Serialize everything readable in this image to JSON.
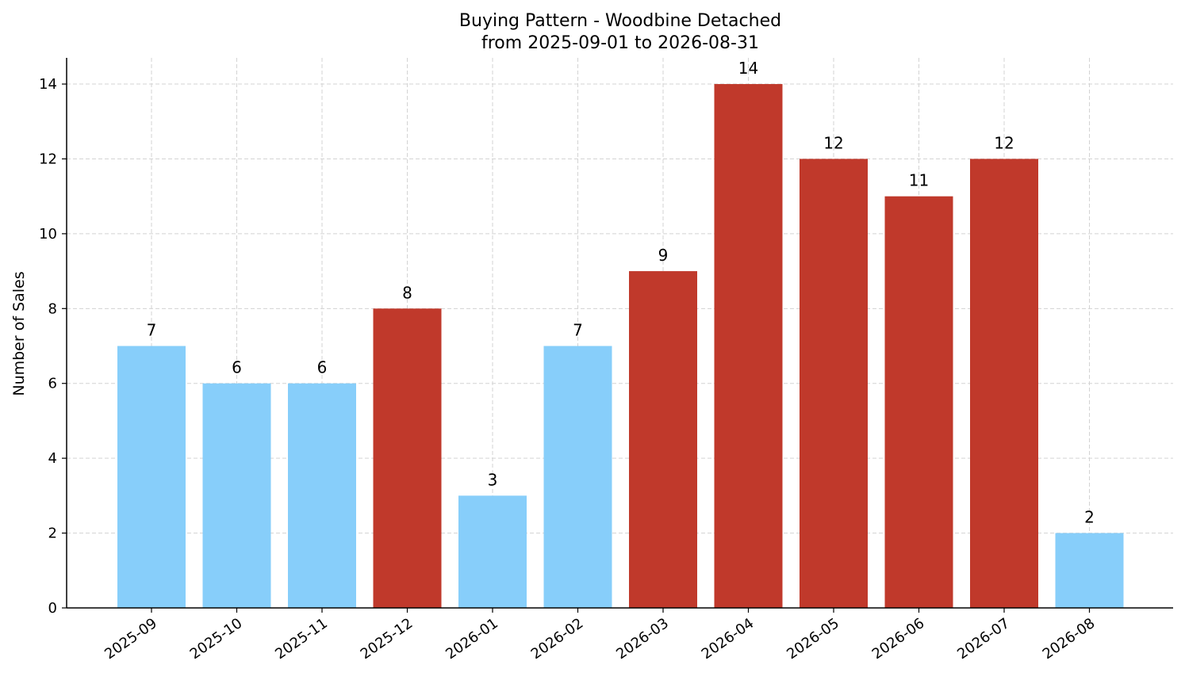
{
  "chart_data": {
    "type": "bar",
    "title_line1": "Buying Pattern - Woodbine Detached",
    "title_line2": "from 2025-09-01 to 2026-08-31",
    "ylabel": "Number of Sales",
    "xlabel": "",
    "categories": [
      "2025-09",
      "2025-10",
      "2025-11",
      "2025-12",
      "2026-01",
      "2026-02",
      "2026-03",
      "2026-04",
      "2026-05",
      "2026-06",
      "2026-07",
      "2026-08"
    ],
    "values": [
      7,
      6,
      6,
      8,
      3,
      7,
      9,
      14,
      12,
      11,
      12,
      2
    ],
    "highlight": [
      false,
      false,
      false,
      true,
      false,
      false,
      true,
      true,
      true,
      true,
      true,
      false
    ],
    "ylim": [
      0,
      14.7
    ],
    "yticks": [
      0,
      2,
      4,
      6,
      8,
      10,
      12,
      14
    ],
    "grid": true,
    "colors": {
      "normal": "#87CEFA",
      "highlight": "#C0392B"
    }
  }
}
